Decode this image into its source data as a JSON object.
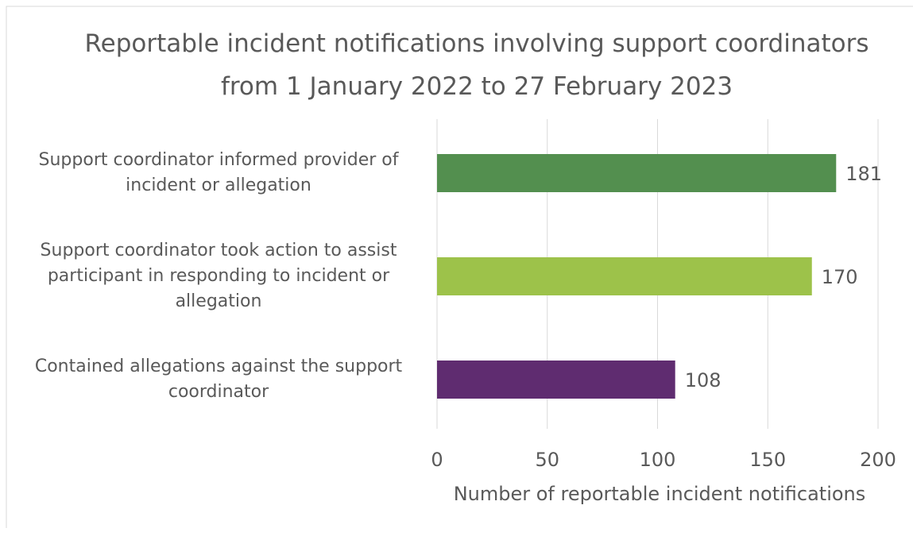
{
  "chart_data": {
    "type": "bar",
    "orientation": "horizontal",
    "title": "Reportable incident notifications involving support coordinators from 1 January 2022 to 27 February 2023",
    "categories": [
      "Support coordinator informed provider of incident or allegation",
      "Support coordinator took action to assist participant in responding to incident or allegation",
      "Contained allegations against the support coordinator"
    ],
    "values": [
      181,
      170,
      108
    ],
    "colors": [
      "#538f4f",
      "#9dc24a",
      "#5f2c70"
    ],
    "xlabel": "Number of reportable incident notifications",
    "xlim": [
      0,
      200
    ],
    "xticks": [
      0,
      50,
      100,
      150,
      200
    ],
    "grid": true
  }
}
